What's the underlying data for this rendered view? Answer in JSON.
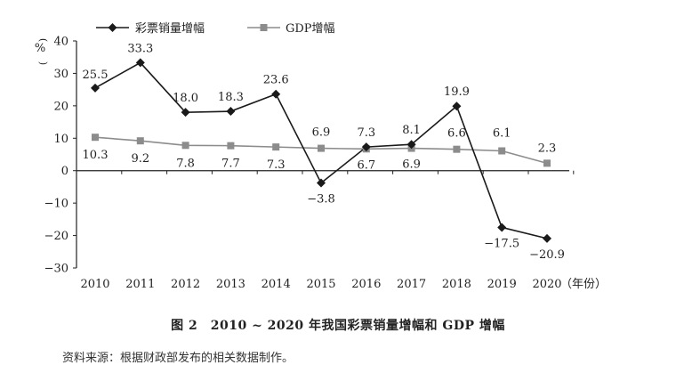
{
  "chart_data": {
    "type": "line",
    "x": [
      "2010",
      "2011",
      "2012",
      "2013",
      "2014",
      "2015",
      "2016",
      "2017",
      "2018",
      "2019",
      "2020"
    ],
    "x_unit_label": "（年份）",
    "y_unit_label": "%",
    "ylim": [
      -30,
      40
    ],
    "yticks": [
      -30,
      -20,
      -10,
      0,
      10,
      20,
      30,
      40
    ],
    "ytick_labels": [
      "−30",
      "−20",
      "−10",
      "0",
      "10",
      "20",
      "30",
      "40"
    ],
    "grid": false,
    "legend_position": "top-left",
    "series": [
      {
        "name": "彩票销量增幅",
        "color": "#1a1a1a",
        "marker": "diamond",
        "values": [
          25.5,
          33.3,
          18.0,
          18.3,
          23.6,
          -3.8,
          7.3,
          8.1,
          19.9,
          -17.5,
          -20.9
        ],
        "labels": [
          "25.5",
          "33.3",
          "18.0",
          "18.3",
          "23.6",
          "−3.8",
          "7.3",
          "8.1",
          "19.9",
          "−17.5",
          "−20.9"
        ]
      },
      {
        "name": "GDP增幅",
        "color": "#8c8c8c",
        "marker": "square",
        "values": [
          10.3,
          9.2,
          7.8,
          7.7,
          7.3,
          6.9,
          6.7,
          6.9,
          6.6,
          6.1,
          2.3
        ],
        "labels": [
          "10.3",
          "9.2",
          "7.8",
          "7.7",
          "7.3",
          "6.9",
          "6.7",
          "6.9",
          "6.6",
          "6.1",
          "2.3"
        ]
      }
    ]
  },
  "caption": "图 2　2010 ~ 2020 年我国彩票销量增幅和 GDP 增幅",
  "source": "资料来源：根据财政部发布的相关数据制作。"
}
